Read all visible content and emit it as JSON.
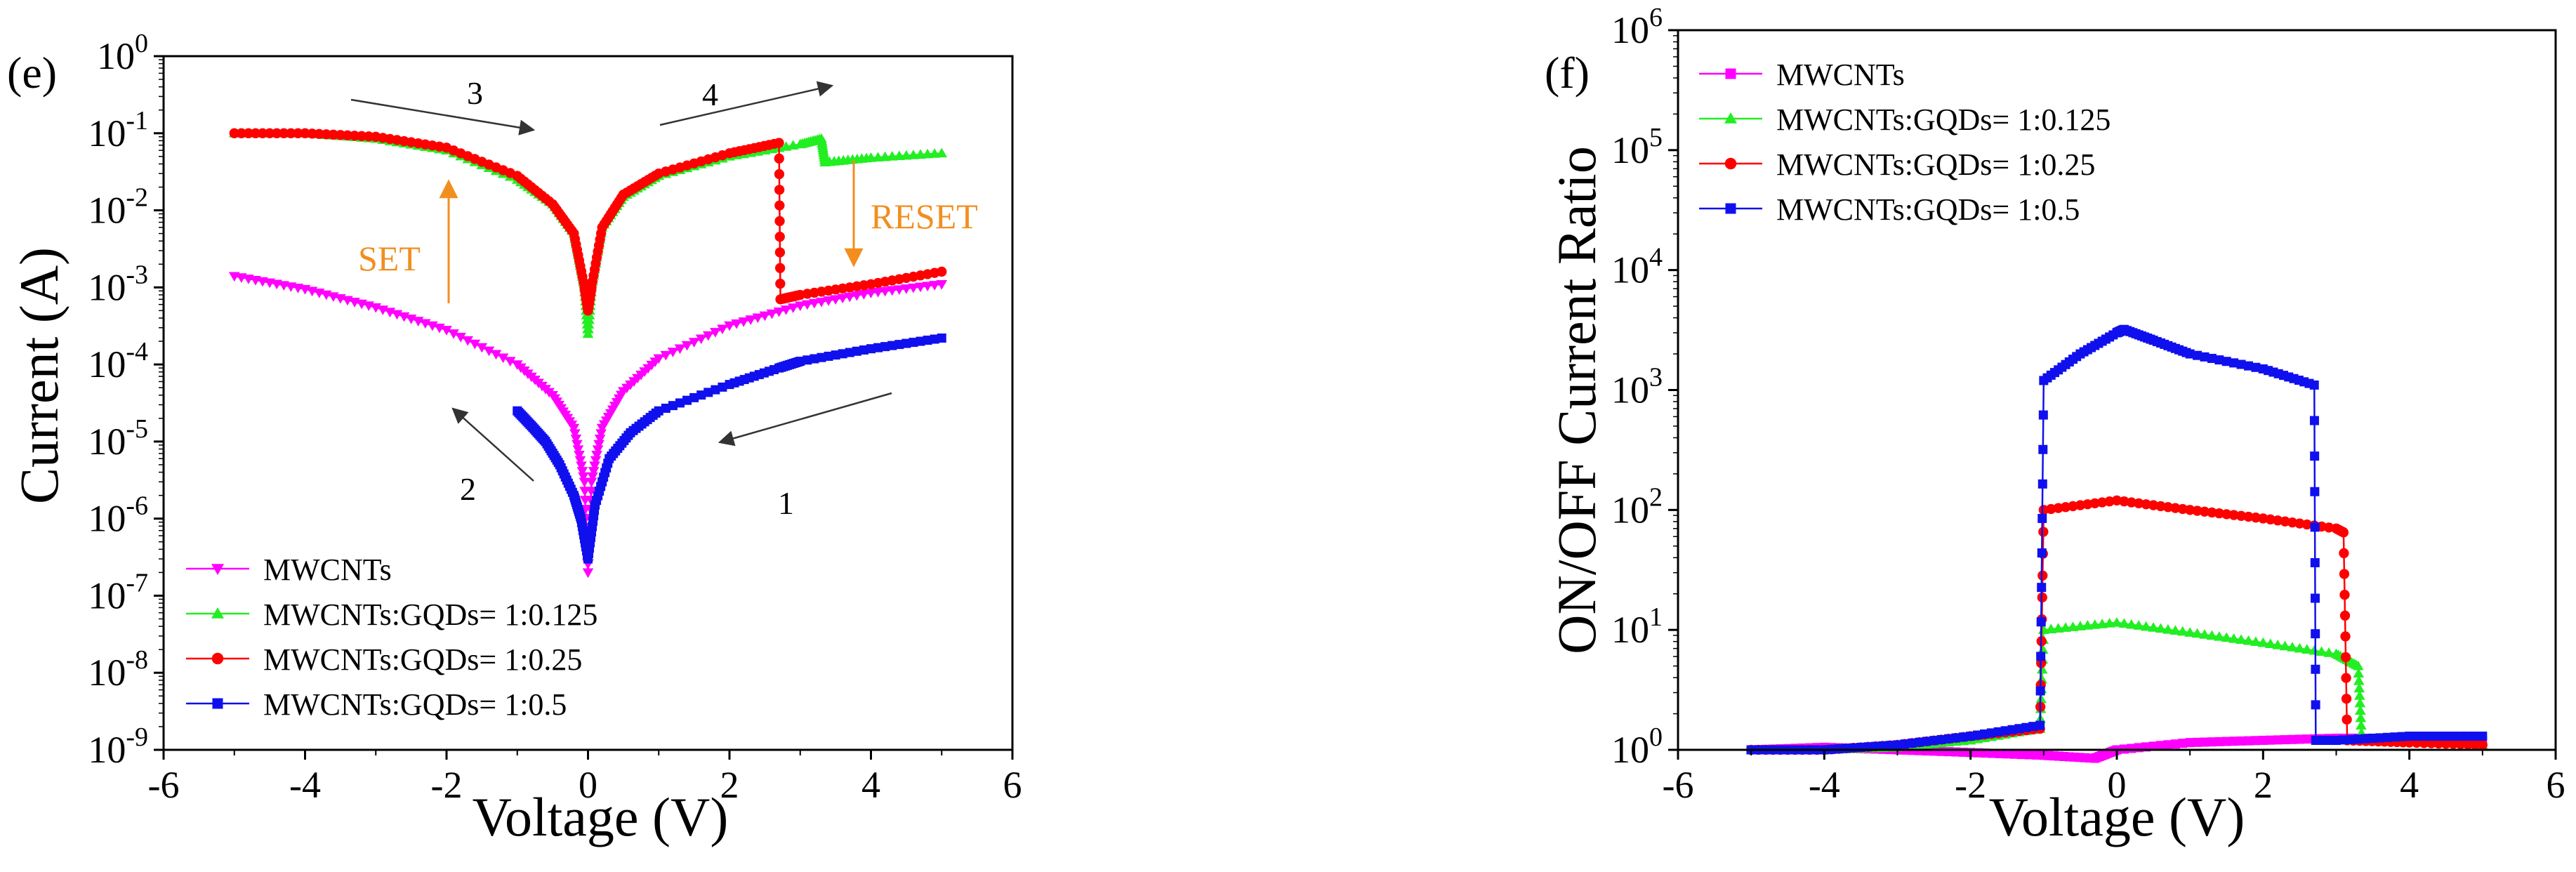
{
  "chart_data": [
    {
      "id": "e",
      "type": "line",
      "panel_label": "(e)",
      "xlabel": "Voltage (V)",
      "ylabel": "Current (A)",
      "xlim": [
        -6,
        6
      ],
      "ylim_log10": [
        -9,
        0
      ],
      "yscale": "log",
      "xticks": [
        -6,
        -4,
        -2,
        0,
        2,
        4,
        6
      ],
      "xtick_labels": [
        "-6",
        "-4",
        "-2",
        "0",
        "2",
        "4",
        "6"
      ],
      "ytick_exponents": [
        0,
        -1,
        -2,
        -3,
        -4,
        -5,
        -6,
        -7,
        -8,
        -9
      ],
      "ytick_base": "10",
      "legend": [
        "MWCNTs",
        "MWCNTs:GQDs= 1:0.125",
        "MWCNTs:GQDs= 1:0.25",
        "MWCNTs:GQDs= 1:0.5"
      ],
      "annotations": {
        "set_label": "SET",
        "reset_label": "RESET",
        "sweep_1": "1",
        "sweep_2": "2",
        "sweep_3": "3",
        "sweep_4": "4"
      },
      "series": [
        {
          "name": "MWCNTs",
          "color": "#FF00FF",
          "marker": "triangle-down",
          "points": [
            [
              -5,
              0.0014
            ],
            [
              -4,
              0.00095
            ],
            [
              -3,
              0.00055
            ],
            [
              -2,
              0.00028
            ],
            [
              -1,
              0.0001
            ],
            [
              -0.5,
              4e-05
            ],
            [
              -0.2,
              1.5e-05
            ],
            [
              -0.05,
              3e-06
            ],
            [
              0,
              2e-07
            ],
            [
              0.05,
              3e-06
            ],
            [
              0.2,
              1.5e-05
            ],
            [
              0.5,
              4.5e-05
            ],
            [
              1,
              0.00012
            ],
            [
              2,
              0.00032
            ],
            [
              3,
              0.00058
            ],
            [
              4,
              0.00085
            ],
            [
              5,
              0.0011
            ]
          ]
        },
        {
          "name": "MWCNTs:GQDs= 1:0.125",
          "color": "#22EE22",
          "marker": "triangle-up",
          "points": [
            [
              -5,
              0.1
            ],
            [
              -4,
              0.1
            ],
            [
              -3,
              0.085
            ],
            [
              -2,
              0.06
            ],
            [
              -1,
              0.025
            ],
            [
              -0.5,
              0.012
            ],
            [
              -0.2,
              0.005
            ],
            [
              -0.05,
              0.001
            ],
            [
              0,
              0.00025
            ],
            [
              0.05,
              0.001
            ],
            [
              0.2,
              0.006
            ],
            [
              0.5,
              0.015
            ],
            [
              1,
              0.028
            ],
            [
              2,
              0.05
            ],
            [
              3,
              0.072
            ],
            [
              3.3,
              0.085
            ],
            [
              3.35,
              0.042
            ],
            [
              4,
              0.048
            ],
            [
              5,
              0.055
            ]
          ]
        },
        {
          "name": "MWCNTs:GQDs= 1:0.25",
          "color": "#FF0000",
          "marker": "circle",
          "points": [
            [
              -5,
              0.1
            ],
            [
              -4,
              0.1
            ],
            [
              -3,
              0.09
            ],
            [
              -2,
              0.065
            ],
            [
              -1,
              0.028
            ],
            [
              -0.5,
              0.012
            ],
            [
              -0.2,
              0.005
            ],
            [
              -0.05,
              0.001
            ],
            [
              0,
              0.0005
            ],
            [
              0.05,
              0.001
            ],
            [
              0.2,
              0.006
            ],
            [
              0.5,
              0.016
            ],
            [
              1,
              0.03
            ],
            [
              2,
              0.055
            ],
            [
              2.7,
              0.075
            ],
            [
              2.72,
              0.0007
            ],
            [
              3,
              0.0008
            ],
            [
              4,
              0.0011
            ],
            [
              5,
              0.0016
            ]
          ]
        },
        {
          "name": "MWCNTs:GQDs= 1:0.5",
          "color": "#1010EE",
          "marker": "square",
          "points": [
            [
              -1,
              2.5e-05
            ],
            [
              -0.8,
              1.6e-05
            ],
            [
              -0.6,
              1e-05
            ],
            [
              -0.4,
              5e-06
            ],
            [
              -0.2,
              2e-06
            ],
            [
              -0.1,
              1e-06
            ],
            [
              0,
              3e-07
            ],
            [
              0.1,
              1.5e-06
            ],
            [
              0.3,
              6e-06
            ],
            [
              0.6,
              1.3e-05
            ],
            [
              1,
              2.5e-05
            ],
            [
              2,
              5.5e-05
            ],
            [
              2.7,
              9e-05
            ],
            [
              3,
              0.00011
            ],
            [
              4,
              0.00016
            ],
            [
              5,
              0.00022
            ]
          ]
        }
      ]
    },
    {
      "id": "f",
      "type": "line",
      "panel_label": "(f)",
      "xlabel": "Voltage (V)",
      "ylabel": "ON/OFF Current Ratio",
      "xlim": [
        -6,
        6
      ],
      "ylim_log10": [
        0,
        6
      ],
      "yscale": "log",
      "xticks": [
        -6,
        -4,
        -2,
        0,
        2,
        4,
        6
      ],
      "xtick_labels": [
        "-6",
        "-4",
        "-2",
        "0",
        "2",
        "4",
        "6"
      ],
      "ytick_exponents": [
        0,
        1,
        2,
        3,
        4,
        5,
        6
      ],
      "ytick_base": "10",
      "legend": [
        "MWCNTs",
        "MWCNTs:GQDs= 1:0.125",
        "MWCNTs:GQDs= 1:0.25",
        "MWCNTs:GQDs= 1:0.5"
      ],
      "series": [
        {
          "name": "MWCNTs",
          "color": "#FF00FF",
          "marker": "square",
          "points": [
            [
              -5,
              1.0
            ],
            [
              -4,
              1.05
            ],
            [
              -3,
              1.0
            ],
            [
              -2,
              0.95
            ],
            [
              -1,
              0.9
            ],
            [
              -0.3,
              0.85
            ],
            [
              0,
              1.0
            ],
            [
              1,
              1.15
            ],
            [
              2,
              1.2
            ],
            [
              3,
              1.25
            ],
            [
              4,
              1.25
            ],
            [
              5,
              1.2
            ]
          ]
        },
        {
          "name": "MWCNTs:GQDs= 1:0.125",
          "color": "#22EE22",
          "marker": "triangle-up",
          "points": [
            [
              -5,
              1.0
            ],
            [
              -4,
              1.0
            ],
            [
              -3,
              1.05
            ],
            [
              -2,
              1.2
            ],
            [
              -1.05,
              1.5
            ],
            [
              -1,
              10
            ],
            [
              0,
              11.5
            ],
            [
              1,
              9.5
            ],
            [
              2,
              7.8
            ],
            [
              3,
              6.3
            ],
            [
              3.3,
              5
            ],
            [
              3.35,
              1.2
            ],
            [
              4,
              1.2
            ],
            [
              5,
              1.1
            ]
          ]
        },
        {
          "name": "MWCNTs:GQDs= 1:0.25",
          "color": "#FF0000",
          "marker": "circle",
          "points": [
            [
              -5,
              1.0
            ],
            [
              -4,
              1.0
            ],
            [
              -3,
              1.1
            ],
            [
              -2,
              1.3
            ],
            [
              -1.05,
              1.5
            ],
            [
              -1,
              100
            ],
            [
              0,
              120
            ],
            [
              1,
              100
            ],
            [
              2,
              85
            ],
            [
              3,
              70
            ],
            [
              3.1,
              65
            ],
            [
              3.15,
              1.2
            ],
            [
              4,
              1.15
            ],
            [
              5,
              1.1
            ]
          ]
        },
        {
          "name": "MWCNTs:GQDs= 1:0.5",
          "color": "#1010EE",
          "marker": "square",
          "points": [
            [
              -5,
              1.0
            ],
            [
              -4,
              1.0
            ],
            [
              -3,
              1.1
            ],
            [
              -2,
              1.3
            ],
            [
              -1.05,
              1.6
            ],
            [
              -1,
              1200
            ],
            [
              -0.5,
              2000
            ],
            [
              0,
              3000
            ],
            [
              0.1,
              3200
            ],
            [
              0.5,
              2600
            ],
            [
              1,
              2000
            ],
            [
              2,
              1500
            ],
            [
              2.7,
              1100
            ],
            [
              2.72,
              1.2
            ],
            [
              3,
              1.2
            ],
            [
              4,
              1.3
            ],
            [
              5,
              1.3
            ]
          ]
        }
      ]
    }
  ]
}
